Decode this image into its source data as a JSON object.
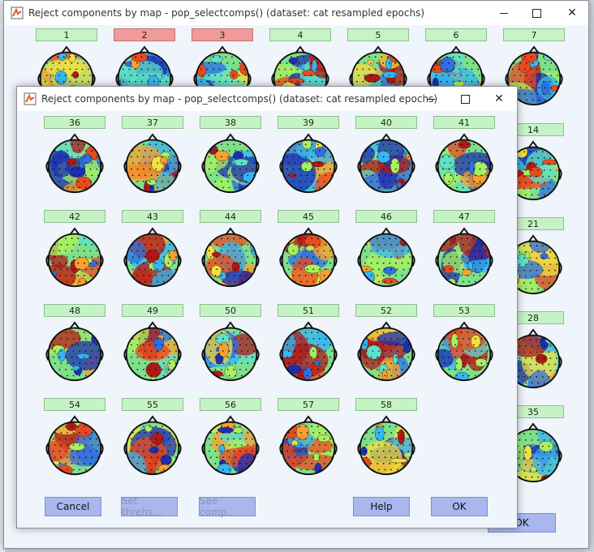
{
  "background_window": {
    "title": "Reject components by map - pop_selectcomps() (dataset:  cat resampled epochs)",
    "top_components": [
      {
        "label": "1",
        "rejected": false
      },
      {
        "label": "2",
        "rejected": true
      },
      {
        "label": "3",
        "rejected": true
      },
      {
        "label": "4",
        "rejected": false
      },
      {
        "label": "5",
        "rejected": false
      },
      {
        "label": "6",
        "rejected": false
      },
      {
        "label": "7",
        "rejected": false
      }
    ],
    "right_components": [
      {
        "label": "14",
        "rejected": false
      },
      {
        "label": "21",
        "rejected": false
      },
      {
        "label": "28",
        "rejected": false
      },
      {
        "label": "35",
        "rejected": false
      }
    ],
    "ok_label": "OK"
  },
  "dialog": {
    "title": "Reject components by map - pop_selectcomps() (dataset:  cat resampled epochs)",
    "components": [
      {
        "label": "36",
        "rejected": false
      },
      {
        "label": "37",
        "rejected": false
      },
      {
        "label": "38",
        "rejected": false
      },
      {
        "label": "39",
        "rejected": false
      },
      {
        "label": "40",
        "rejected": false
      },
      {
        "label": "41",
        "rejected": false
      },
      {
        "label": "42",
        "rejected": false
      },
      {
        "label": "43",
        "rejected": false
      },
      {
        "label": "44",
        "rejected": false
      },
      {
        "label": "45",
        "rejected": false
      },
      {
        "label": "46",
        "rejected": false
      },
      {
        "label": "47",
        "rejected": false
      },
      {
        "label": "48",
        "rejected": false
      },
      {
        "label": "49",
        "rejected": false
      },
      {
        "label": "50",
        "rejected": false
      },
      {
        "label": "51",
        "rejected": false
      },
      {
        "label": "52",
        "rejected": false
      },
      {
        "label": "53",
        "rejected": false
      },
      {
        "label": "54",
        "rejected": false
      },
      {
        "label": "55",
        "rejected": false
      },
      {
        "label": "56",
        "rejected": false
      },
      {
        "label": "57",
        "rejected": false
      },
      {
        "label": "58",
        "rejected": false
      }
    ],
    "buttons": {
      "cancel": "Cancel",
      "set_thresh": "Set threhs...",
      "see_comp": "See comp...",
      "help": "Help",
      "ok": "OK"
    }
  },
  "colors": {
    "label_normal": "#c6f3c6",
    "label_rejected": "#f09a9a",
    "button": "#a8b8ef",
    "window_bg": "#f0f4fb"
  }
}
